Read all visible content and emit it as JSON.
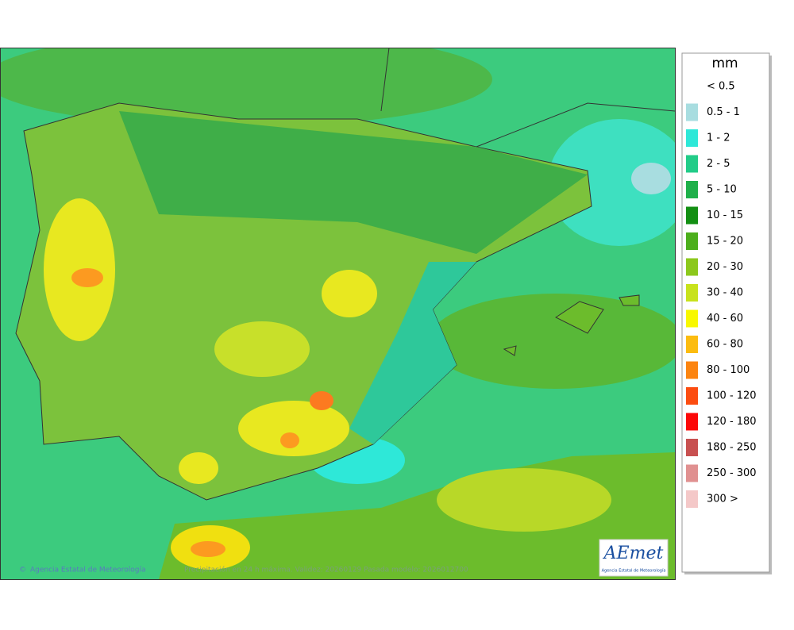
{
  "legend": {
    "title": "mm",
    "items": [
      {
        "label": "< 0.5"
      },
      {
        "label": "0.5 - 1",
        "color": "#a8dde0"
      },
      {
        "label": "1 - 2",
        "color": "#2ee8d8"
      },
      {
        "label": "2 - 5",
        "color": "#22cc88"
      },
      {
        "label": "5 - 10",
        "color": "#1fb04a"
      },
      {
        "label": "10 - 15",
        "color": "#138f13"
      },
      {
        "label": "15 - 20",
        "color": "#4cae1c"
      },
      {
        "label": "20 - 30",
        "color": "#8cc81c"
      },
      {
        "label": "30 - 40",
        "color": "#c8e21c"
      },
      {
        "label": "40 - 60",
        "color": "#f8f800"
      },
      {
        "label": "60 - 80",
        "color": "#fcbc10"
      },
      {
        "label": "80 - 100",
        "color": "#fc8410"
      },
      {
        "label": "100 - 120",
        "color": "#fc4c10"
      },
      {
        "label": "120 - 180",
        "color": "#fc0808"
      },
      {
        "label": "180 - 250",
        "color": "#c85050"
      },
      {
        "label": "250 - 300",
        "color": "#e09090"
      },
      {
        "label": "300 >",
        "color": "#f4c8c8"
      }
    ]
  },
  "map": {
    "copyright": "Agencia Estatal de Meteorología",
    "caption": "Precipitación en 24 h máxima. Validez: 20260129 Pasada modelo: 2026012700"
  },
  "logo": {
    "name": "AEmet",
    "subtitle": "Agencia Estatal de Meteorología"
  }
}
